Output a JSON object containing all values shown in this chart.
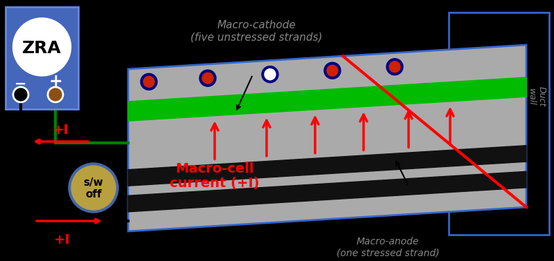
{
  "bg_color": "#000000",
  "fig_width": 8.0,
  "fig_height": 3.78,
  "zra_text": "ZRA",
  "minus_text": "−",
  "plus_text": "+",
  "sw_text1": "s/w",
  "sw_text2": "off",
  "macro_cathode_label": "Macro-cathode\n(five unstressed strands)",
  "macro_anode_label": "Macro-anode\n(one stressed strand)",
  "macro_cell_label": "Macro-cell\ncurrent (+I)",
  "duct_wall_label": "Duct\nwall",
  "plus_I_top": "+I",
  "plus_I_bottom": "+I",
  "strand_body_color": "#aaaaaa",
  "strand_border_color": "#3366cc",
  "green_stripe_color": "#00bb00",
  "black_stripe_color": "#111111",
  "red_color": "#ff0000",
  "zra_fill": "#4466bb",
  "zra_edge": "#6688dd",
  "sw_fill": "#b8a040",
  "sw_edge": "#4466aa",
  "gray_text": "#888888"
}
